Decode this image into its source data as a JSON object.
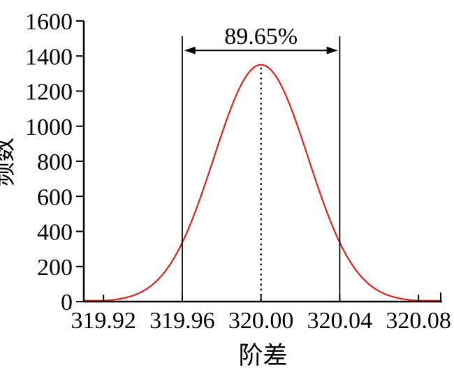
{
  "chart_data": {
    "type": "line",
    "title": "",
    "xlabel": "阶差",
    "ylabel": "频数",
    "xlim": [
      319.91,
      320.092
    ],
    "ylim": [
      0,
      1600
    ],
    "xticks": [
      319.92,
      319.96,
      320.0,
      320.04,
      320.08
    ],
    "xtick_labels": [
      "319.92",
      "319.96",
      "320.00",
      "320.04",
      "320.08"
    ],
    "yticks": [
      0,
      200,
      400,
      600,
      800,
      1000,
      1200,
      1400,
      1600
    ],
    "ytick_labels": [
      "0",
      "200",
      "400",
      "600",
      "800",
      "1000",
      "1200",
      "1400",
      "1600"
    ],
    "grid": false,
    "legend": false,
    "axis_end_tick": true,
    "axis_color": "#000000",
    "series": [
      {
        "name": "frequency-distribution-curve",
        "shape": "gaussian",
        "mean": 320.0,
        "sigma": 0.024,
        "peak": 1350,
        "color": "#e02222",
        "sampled_points": {
          "x": [
            319.92,
            319.94,
            319.96,
            319.98,
            320.0,
            320.02,
            320.04,
            320.06,
            320.08
          ],
          "y": [
            5,
            59,
            337,
            954,
            1350,
            954,
            337,
            59,
            5
          ]
        }
      }
    ],
    "annotations": {
      "interval_label": "89.65%",
      "interval": [
        319.96,
        320.04
      ],
      "interval_lines_top_frequency": 1513,
      "arrow_frequency": 1432,
      "center_dotted_line_x": 320.0
    }
  }
}
